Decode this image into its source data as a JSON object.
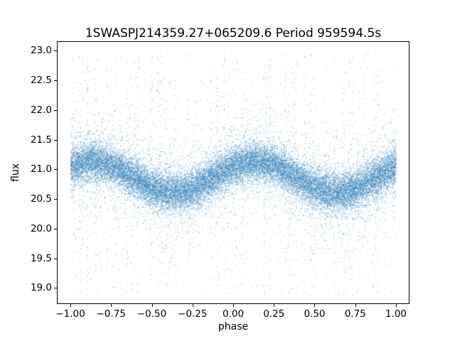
{
  "figure": {
    "background": "#ffffff",
    "text_color": "#000000"
  },
  "chart_data": {
    "type": "scatter",
    "title": "1SWASPJ214359.27+065209.6 Period 959594.5s",
    "xlabel": "phase",
    "ylabel": "flux",
    "xlim": [
      -1.083,
      1.083
    ],
    "ylim": [
      18.73,
      23.16
    ],
    "xticks": [
      -1.0,
      -0.75,
      -0.5,
      -0.25,
      0.0,
      0.25,
      0.5,
      0.75,
      1.0
    ],
    "xtick_labels": [
      "−1.00",
      "−0.75",
      "−0.50",
      "−0.25",
      "0.00",
      "0.25",
      "0.50",
      "0.75",
      "1.00"
    ],
    "yticks": [
      19.0,
      19.5,
      20.0,
      20.5,
      21.0,
      21.5,
      22.0,
      22.5,
      23.0
    ],
    "ytick_labels": [
      "19.0",
      "19.5",
      "20.0",
      "20.5",
      "21.0",
      "21.5",
      "22.0",
      "22.5",
      "23.0"
    ],
    "grid": false,
    "legend": null,
    "marker": {
      "color": "#2f7fb8",
      "size": 1,
      "alpha": 0.65
    },
    "n_points": 28000,
    "model": {
      "description": "Phase-folded light curve over two cycles: mean flux ~ 20.875 - 0.275*cos(2*pi*(phase+0.37)); minima (flux ~20.60) at phase -0.375 and 0.625, maxima (flux ~21.15) at phase -0.875 and 0.125; gaussian core scatter with heavier-tailed halo and vertical outlier streaks spanning flux ~18.9 to ~22.95",
      "mean_curve": {
        "phase": [
          -1.0,
          -0.875,
          -0.75,
          -0.625,
          -0.5,
          -0.375,
          -0.25,
          -0.125,
          0.0,
          0.125,
          0.25,
          0.375,
          0.5,
          0.625,
          0.75,
          0.875,
          1.0
        ],
        "flux": [
          21.06,
          21.15,
          21.08,
          20.88,
          20.69,
          20.6,
          20.67,
          20.87,
          21.06,
          21.15,
          21.08,
          20.88,
          20.69,
          20.6,
          20.67,
          20.87,
          21.06
        ]
      },
      "core_sigma": 0.16,
      "halo_sigma": 0.42,
      "halo_fraction": 0.16,
      "streak_outlier_fraction": 0.042,
      "random_outlier_fraction": 0.015,
      "outlier_flux_range": [
        18.88,
        22.95
      ],
      "streak_count": 70,
      "seed": 42
    }
  }
}
